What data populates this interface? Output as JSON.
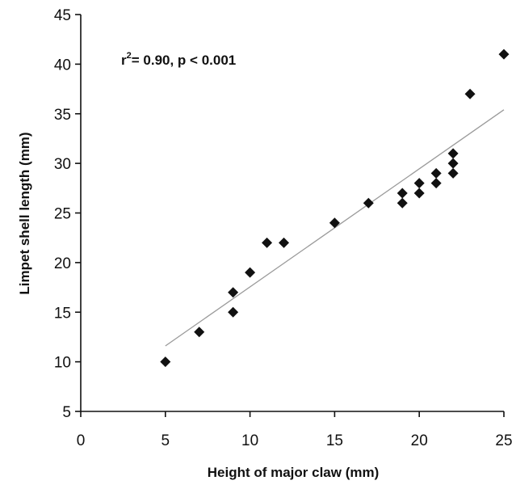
{
  "chart_data": {
    "type": "scatter",
    "xlabel": "Height of major claw (mm)",
    "ylabel": "Limpet shell length (mm)",
    "xlim": [
      0,
      25
    ],
    "ylim": [
      5,
      45
    ],
    "xticks": [
      0,
      5,
      10,
      15,
      20,
      25
    ],
    "yticks": [
      5,
      10,
      15,
      20,
      25,
      30,
      35,
      40,
      45
    ],
    "grid": false,
    "annotation": {
      "r2_prefix": "r",
      "r2_exp": "2",
      "r2_rest": "= 0.90, p < 0.001"
    },
    "points": [
      {
        "x": 5,
        "y": 10
      },
      {
        "x": 7,
        "y": 13
      },
      {
        "x": 9,
        "y": 15
      },
      {
        "x": 9,
        "y": 17
      },
      {
        "x": 10,
        "y": 19
      },
      {
        "x": 11,
        "y": 22
      },
      {
        "x": 12,
        "y": 22
      },
      {
        "x": 15,
        "y": 24
      },
      {
        "x": 17,
        "y": 26
      },
      {
        "x": 19,
        "y": 26
      },
      {
        "x": 19,
        "y": 27
      },
      {
        "x": 20,
        "y": 27
      },
      {
        "x": 20,
        "y": 28
      },
      {
        "x": 21,
        "y": 28
      },
      {
        "x": 21,
        "y": 29
      },
      {
        "x": 22,
        "y": 29
      },
      {
        "x": 22,
        "y": 30
      },
      {
        "x": 22,
        "y": 31
      },
      {
        "x": 23,
        "y": 37
      },
      {
        "x": 25,
        "y": 41
      }
    ],
    "trendline": {
      "x": [
        5,
        25
      ],
      "y": [
        11.6,
        35.4
      ]
    },
    "marker": "diamond",
    "marker_color": "#111111",
    "line_color": "#9a9a9a"
  }
}
